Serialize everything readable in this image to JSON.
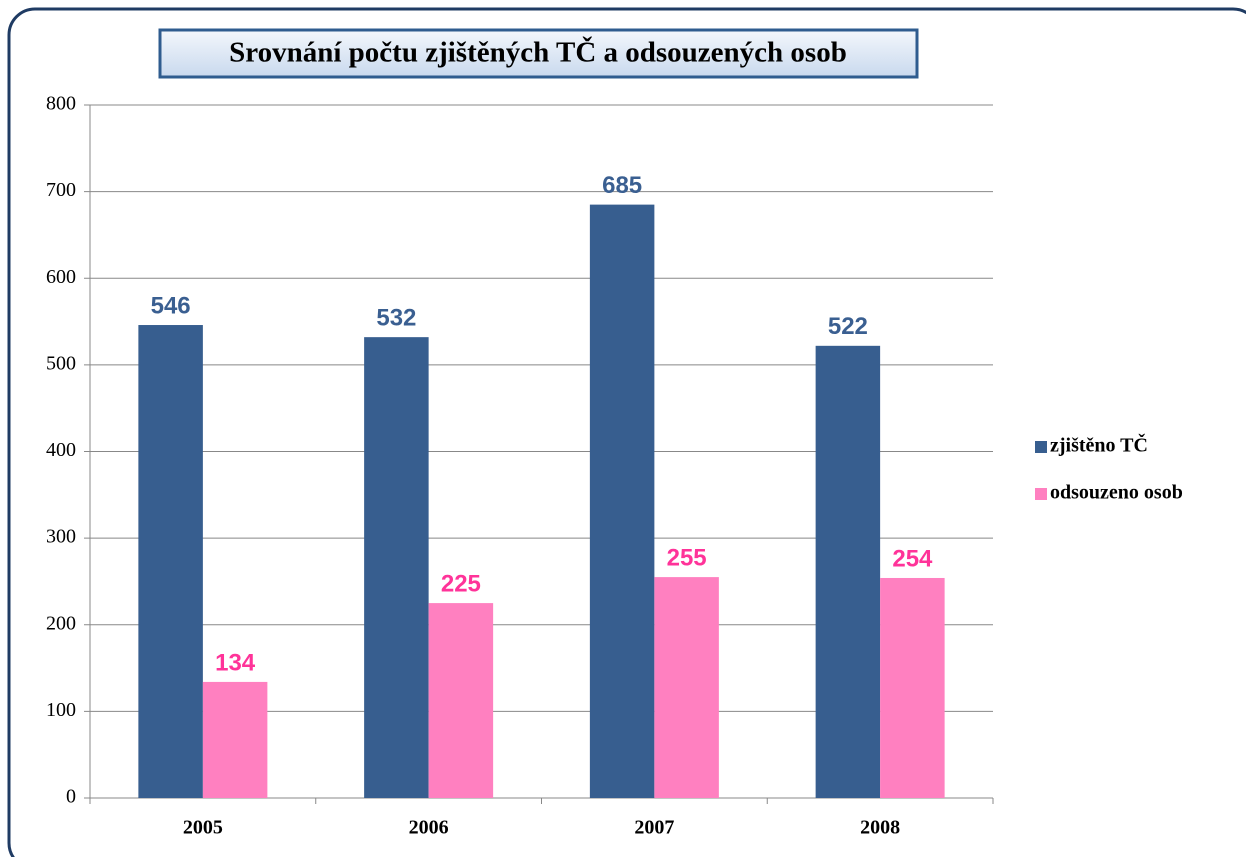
{
  "chart_data": {
    "type": "bar",
    "title": "Srovnání počtu zjištěných TČ a odsouzených osob",
    "categories": [
      "2005",
      "2006",
      "2007",
      "2008"
    ],
    "series": [
      {
        "name": "zjištěno TČ",
        "color": "#375e8f",
        "label_color": "#3a5f91",
        "values": [
          546,
          532,
          685,
          522
        ]
      },
      {
        "name": "odsouzeno osob",
        "color": "#ff80c0",
        "label_color": "#ff3399",
        "values": [
          134,
          225,
          255,
          254
        ]
      }
    ],
    "ylim": [
      0,
      800
    ],
    "yticks": [
      0,
      100,
      200,
      300,
      400,
      500,
      600,
      700,
      800
    ],
    "grid": true,
    "legend": "right"
  }
}
